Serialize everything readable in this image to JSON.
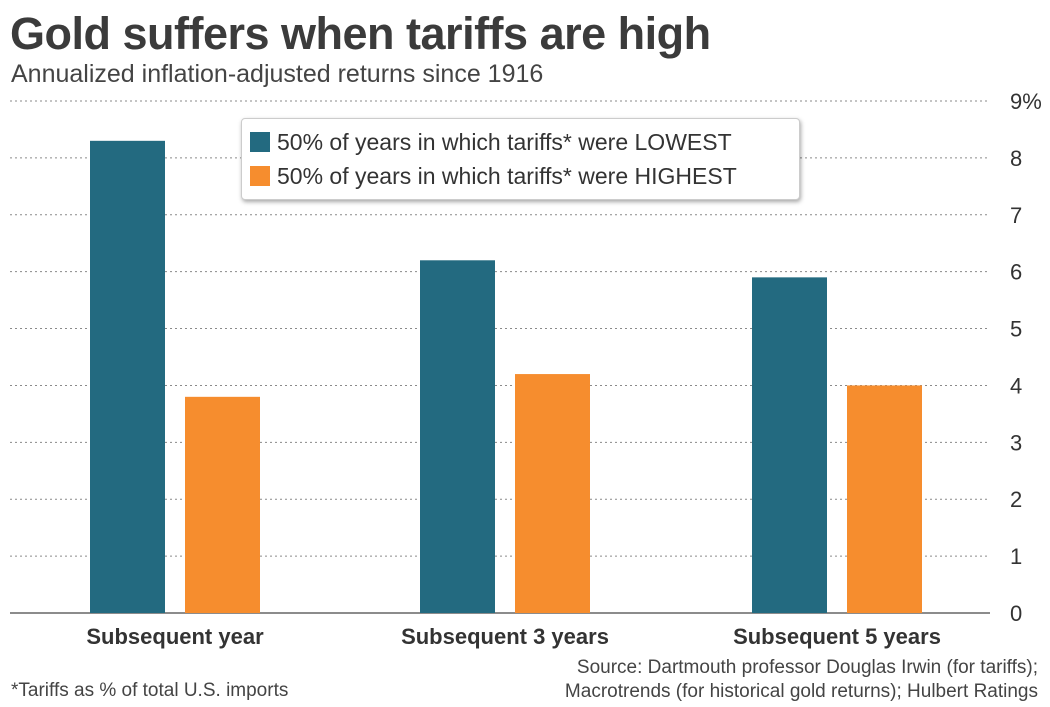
{
  "header": {
    "title": "Gold suffers when tariffs are high",
    "subtitle": "Annualized inflation-adjusted returns since 1916"
  },
  "colors": {
    "lowest": "#236a80",
    "highest": "#f68d2e"
  },
  "chart_data": {
    "type": "bar",
    "title": "Gold suffers when tariffs are high",
    "subtitle": "Annualized inflation-adjusted returns since 1916",
    "categories": [
      "Subsequent year",
      "Subsequent 3 years",
      "Subsequent 5 years"
    ],
    "series": [
      {
        "name": "50% of years in which tariffs* were LOWEST",
        "values": [
          8.3,
          6.2,
          5.9
        ]
      },
      {
        "name": "50% of years in which tariffs* were HIGHEST",
        "values": [
          3.8,
          4.2,
          4.0
        ]
      }
    ],
    "y_ticks": [
      "0",
      "1",
      "2",
      "3",
      "4",
      "5",
      "6",
      "7",
      "8",
      "9%"
    ],
    "ylim": [
      0,
      9
    ],
    "ylabel": "",
    "xlabel": "",
    "grid": true,
    "legend_position": "top-center"
  },
  "footer": {
    "footnote": "*Tariffs as % of total U.S. imports",
    "source_line1": "Source: Dartmouth professor Douglas Irwin (for tariffs);",
    "source_line2": "Macrotrends (for historical gold returns); Hulbert Ratings"
  }
}
